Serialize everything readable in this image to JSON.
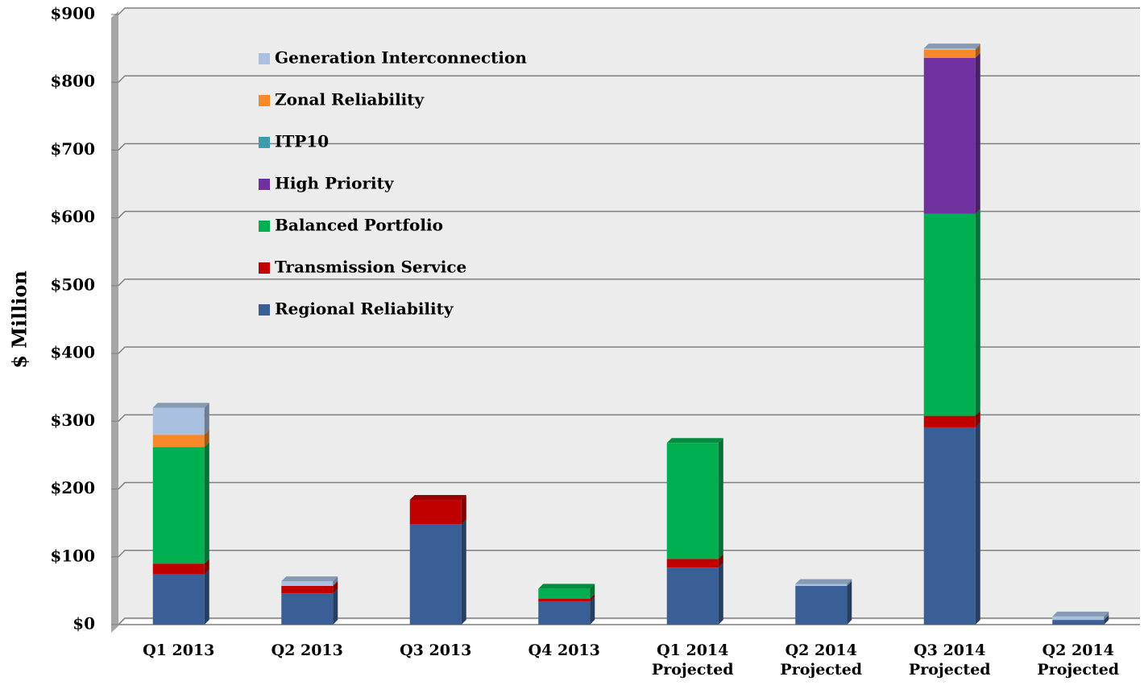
{
  "chart_data": {
    "type": "stacked_bar",
    "y_label": "$ Million",
    "categories": [
      "Q1 2013",
      "Q2 2013",
      "Q3 2013",
      "Q4 2013",
      "Q1 2014\nProjected",
      "Q2 2014\nProjected",
      "Q3 2014\nProjected",
      "Q2 2014\nProjected"
    ],
    "series": [
      {
        "name": "Regional Reliability",
        "color": "#3a5f96",
        "values": [
          74,
          46,
          148,
          34,
          84,
          57,
          291,
          7
        ]
      },
      {
        "name": "Transmission Service",
        "color": "#c00000",
        "values": [
          16,
          11,
          36,
          4,
          13,
          0,
          17,
          0
        ]
      },
      {
        "name": "Balanced Portfolio",
        "color": "#00b050",
        "values": [
          172,
          0,
          0,
          15,
          171,
          0,
          298,
          0
        ]
      },
      {
        "name": "High Priority",
        "color": "#7030a0",
        "values": [
          0,
          0,
          0,
          0,
          0,
          0,
          230,
          0
        ]
      },
      {
        "name": "ITP10",
        "color": "#3d9bb0",
        "values": [
          0,
          0,
          0,
          0,
          0,
          0,
          0,
          0
        ]
      },
      {
        "name": "Zonal Reliability",
        "color": "#f7892a",
        "values": [
          18,
          0,
          0,
          0,
          0,
          0,
          12,
          0
        ]
      },
      {
        "name": "Generation Interconnection",
        "color": "#a9c0e0",
        "values": [
          40,
          7,
          0,
          0,
          0,
          3,
          2,
          5
        ]
      }
    ],
    "ylim": [
      0,
      900
    ],
    "yticks": [
      {
        "value": 0,
        "label": "$0"
      },
      {
        "value": 100,
        "label": "$100"
      },
      {
        "value": 200,
        "label": "$200"
      },
      {
        "value": 300,
        "label": "$300"
      },
      {
        "value": 400,
        "label": "$400"
      },
      {
        "value": 500,
        "label": "$500"
      },
      {
        "value": 600,
        "label": "$600"
      },
      {
        "value": 700,
        "label": "$700"
      },
      {
        "value": 800,
        "label": "$800"
      },
      {
        "value": 900,
        "label": "$900"
      }
    ],
    "grid": true
  }
}
